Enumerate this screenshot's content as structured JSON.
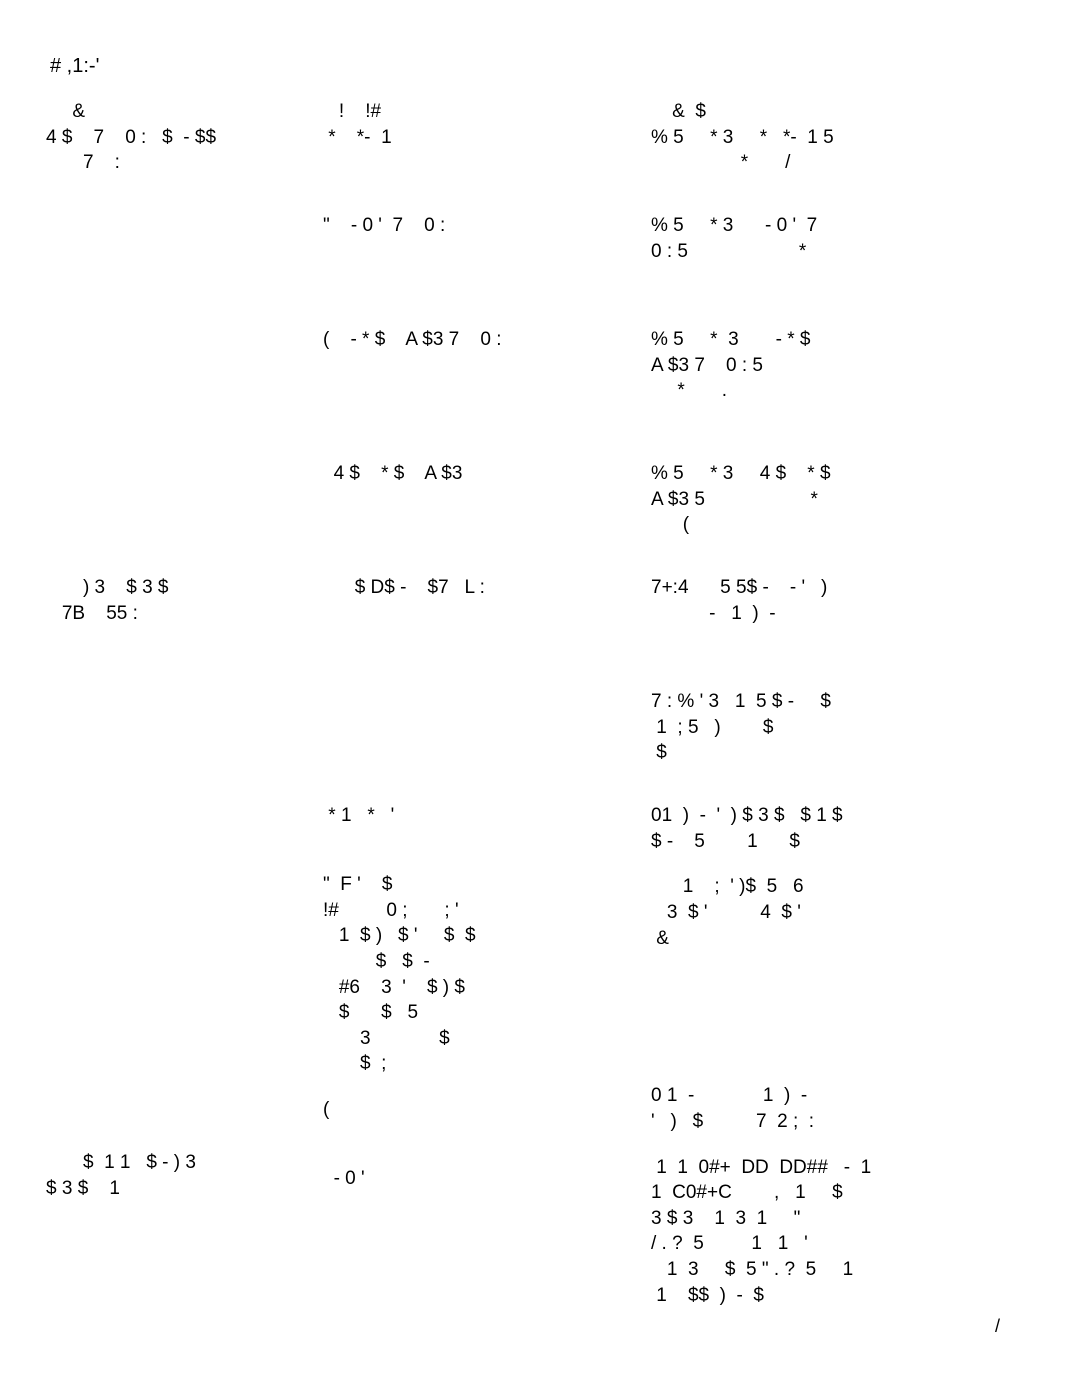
{
  "header": "   #           ,1:-'",
  "columns": {
    "col1": {
      "items": [
        {
          "h": "h-md",
          "text": "     &\n4 $    7    0 :   $  - $$\n       7    :"
        },
        {
          "h": "h-md",
          "text": ""
        },
        {
          "h": "h-lg",
          "text": ""
        },
        {
          "h": "h-md",
          "text": ""
        },
        {
          "h": "h-md",
          "text": "       ) 3    $ 3 $\n   7B    55 :"
        },
        {
          "h": "h-md",
          "text": ""
        },
        {
          "h": "h-sm",
          "text": ""
        },
        {
          "h": "h-xl",
          "text": ""
        },
        {
          "h": "h-sm",
          "text": ""
        },
        {
          "h": "",
          "text": "       $  1 1   $ - ) 3\n$ 3 $    1"
        }
      ]
    },
    "col2": {
      "items": [
        {
          "h": "h-md",
          "text": "   !    !#\n *    *-  1"
        },
        {
          "h": "h-md",
          "text": "\"    - 0 '  7    0 :"
        },
        {
          "h": "h-lg",
          "text": "(    - * $    A $3 7    0 :"
        },
        {
          "h": "h-md",
          "text": "  4 $    * $    A $3"
        },
        {
          "h": "h-md",
          "text": "      $ D$ -    $7   L :"
        },
        {
          "h": "h-md",
          "text": ""
        },
        {
          "h": "h-sm",
          "text": " * 1   *   '"
        },
        {
          "h": "h-xl",
          "text": "\"  F '    $\n!#         0 ;       ; '\n   1  $ )   $ '     $  $\n          $   $  -\n   #6    3  '    $ ) $\n   $      $   5\n       3             $\n       $  ;"
        },
        {
          "h": "h-sm",
          "text": "("
        },
        {
          "h": "",
          "text": "  - 0 '"
        }
      ]
    },
    "col3": {
      "items": [
        {
          "h": "h-md",
          "text": "    &  $\n% 5     * 3     *   *-  1 5\n                 *       /"
        },
        {
          "h": "h-md",
          "text": "% 5     * 3      - 0 '  7\n0 : 5                     *"
        },
        {
          "h": "h-lg",
          "text": "% 5     *  3       - * $\nA $3 7    0 : 5\n     *       ."
        },
        {
          "h": "h-md",
          "text": "% 5     * 3     4 $    * $\nA $3 5                    *\n      ("
        },
        {
          "h": "h-md",
          "text": "7+:4      5 5$ -    - '   )\n           -   1  )  -"
        },
        {
          "h": "h-md",
          "text": "7 : % ' 3   1  5 $ -     $\n 1  ; 5   )        $\n $"
        },
        {
          "h": "h-sm",
          "text": "01  )  -  '  ) $ 3 $   $ 1 $\n$ -    5        1      $"
        },
        {
          "h": "h-xl",
          "text": "      1    ;  ' )$  5   6\n   3  $ '          4  $ '\n &"
        },
        {
          "h": "h-sm",
          "text": "0 1  -             1  )  -\n'   )   $          7  2 ;  :"
        },
        {
          "h": "",
          "text": " 1  1  0#+  DD  DD##   -  1\n1  C0#+C        ,   1     $\n3 $ 3    1  3  1     \"\n/ . ?  5         1   1   '\n   1  3     $  5 \" . ?  5     1\n 1    $$  )  -  $"
        }
      ]
    }
  },
  "page_number": "/"
}
